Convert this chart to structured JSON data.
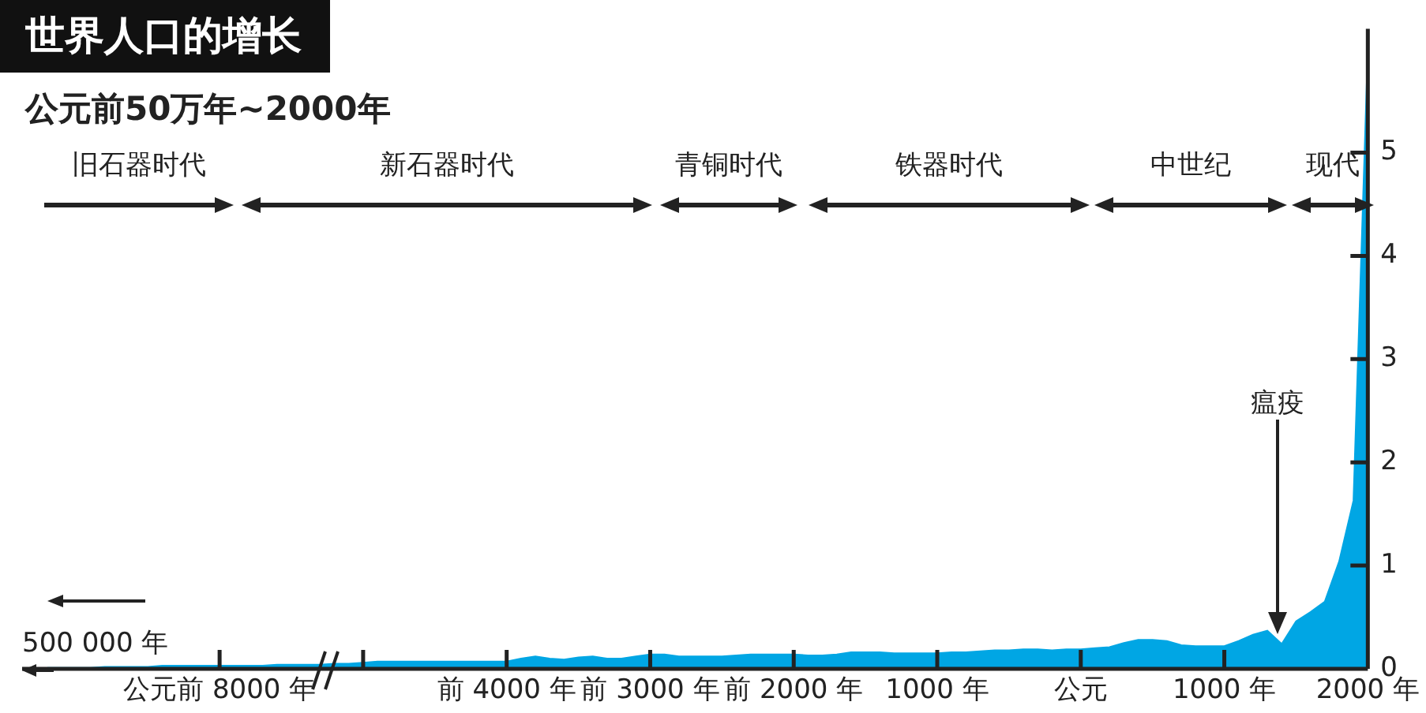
{
  "chart_data": {
    "type": "area",
    "title": "世界人口的增长",
    "subtitle": "公元前50万年~2000年",
    "categories": [
      null,
      null,
      null,
      null,
      null,
      null,
      null,
      null,
      null,
      null,
      null,
      null,
      "公元前 8000 年",
      null,
      null,
      null,
      null,
      null,
      null,
      null,
      null,
      null,
      null,
      null,
      null,
      null,
      null,
      null,
      null,
      null,
      null,
      null,
      "前 4000 年",
      null,
      null,
      null,
      null,
      null,
      null,
      null,
      null,
      null,
      "前 3000 年",
      null,
      null,
      null,
      null,
      null,
      null,
      null,
      null,
      null,
      "前 2000 年",
      null,
      null,
      null,
      null,
      null,
      null,
      null,
      null,
      null,
      "1000 年",
      null,
      null,
      null,
      null,
      null,
      null,
      null,
      null,
      null,
      "公元",
      null,
      null,
      null,
      null,
      null,
      null,
      null,
      null,
      null,
      "1000 年",
      null,
      null,
      null,
      null,
      null,
      null,
      null,
      null,
      null,
      "2000 年"
    ],
    "values": [
      0.01,
      0.01,
      0.01,
      0.01,
      0.02,
      0.02,
      0.02,
      0.02,
      0.03,
      0.03,
      0.03,
      0.03,
      0.03,
      0.03,
      0.03,
      0.03,
      0.04,
      0.04,
      0.04,
      0.04,
      0.05,
      0.05,
      0.06,
      0.07,
      0.07,
      0.07,
      0.07,
      0.07,
      0.07,
      0.07,
      0.07,
      0.07,
      0.07,
      0.1,
      0.12,
      0.1,
      0.09,
      0.11,
      0.12,
      0.1,
      0.1,
      0.12,
      0.14,
      0.14,
      0.12,
      0.12,
      0.12,
      0.12,
      0.13,
      0.14,
      0.14,
      0.14,
      0.14,
      0.13,
      0.13,
      0.14,
      0.16,
      0.16,
      0.16,
      0.15,
      0.15,
      0.15,
      0.15,
      0.16,
      0.16,
      0.17,
      0.18,
      0.18,
      0.19,
      0.19,
      0.18,
      0.19,
      0.19,
      0.2,
      0.21,
      0.25,
      0.28,
      0.28,
      0.27,
      0.23,
      0.22,
      0.22,
      0.22,
      0.27,
      0.33,
      0.37,
      0.24,
      0.46,
      0.55,
      0.65,
      1.04,
      1.63,
      6.0
    ],
    "color": "#00a6e4",
    "ylim": [
      0,
      6.2
    ],
    "yticks": [
      0,
      1,
      2,
      3,
      4,
      5
    ],
    "annotations": [
      "旧石器时代",
      "新石器时代",
      "青铜时代",
      "铁器时代",
      "中世纪",
      "现代",
      "瘟疫",
      "500 000 年"
    ]
  }
}
